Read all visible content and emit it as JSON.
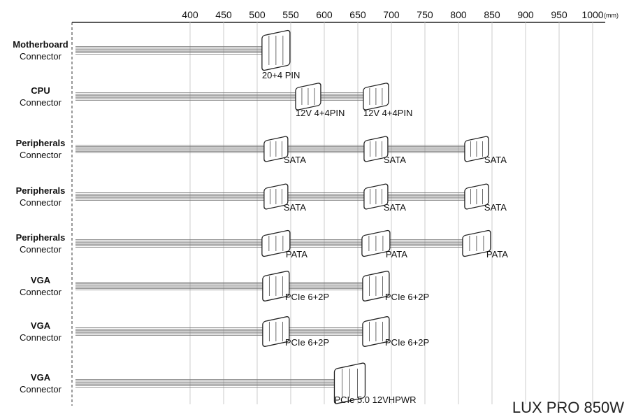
{
  "axis": {
    "ticks": [
      400,
      450,
      500,
      550,
      600,
      650,
      700,
      750,
      800,
      850,
      900,
      950,
      1000
    ],
    "unit": "(mm)",
    "lim": [
      224,
      1000
    ]
  },
  "rows": [
    {
      "name": "Motherboard",
      "sub": "Connector",
      "connectors": [
        {
          "label": "20+4 PIN",
          "position": 528
        }
      ]
    },
    {
      "name": "CPU",
      "sub": "Connector",
      "connectors": [
        {
          "label": "12V 4+4PIN",
          "position": 576
        },
        {
          "label": "12V 4+4PIN",
          "position": 677
        }
      ]
    },
    {
      "name": "Peripherals",
      "sub": "Connector",
      "connectors": [
        {
          "label": "SATA",
          "position": 528
        },
        {
          "label": "SATA",
          "position": 677
        },
        {
          "label": "SATA",
          "position": 827
        }
      ]
    },
    {
      "name": "Peripherals",
      "sub": "Connector",
      "connectors": [
        {
          "label": "SATA",
          "position": 528
        },
        {
          "label": "SATA",
          "position": 677
        },
        {
          "label": "SATA",
          "position": 827
        }
      ]
    },
    {
      "name": "Peripherals",
      "sub": "Connector",
      "connectors": [
        {
          "label": "PATA",
          "position": 528
        },
        {
          "label": "PATA",
          "position": 677
        },
        {
          "label": "PATA",
          "position": 827
        }
      ]
    },
    {
      "name": "VGA",
      "sub": "Connector",
      "connectors": [
        {
          "label": "PCIe 6+2P",
          "position": 528
        },
        {
          "label": "PCIe 6+2P",
          "position": 677
        }
      ]
    },
    {
      "name": "VGA",
      "sub": "Connector",
      "connectors": [
        {
          "label": "PCIe 6+2P",
          "position": 528
        },
        {
          "label": "PCIe 6+2P",
          "position": 677
        }
      ]
    },
    {
      "name": "VGA",
      "sub": "Connector",
      "connectors": [
        {
          "label": "PCIe 5.0 12VHPWR",
          "position": 638
        }
      ]
    }
  ],
  "model": "LUX PRO 850W"
}
